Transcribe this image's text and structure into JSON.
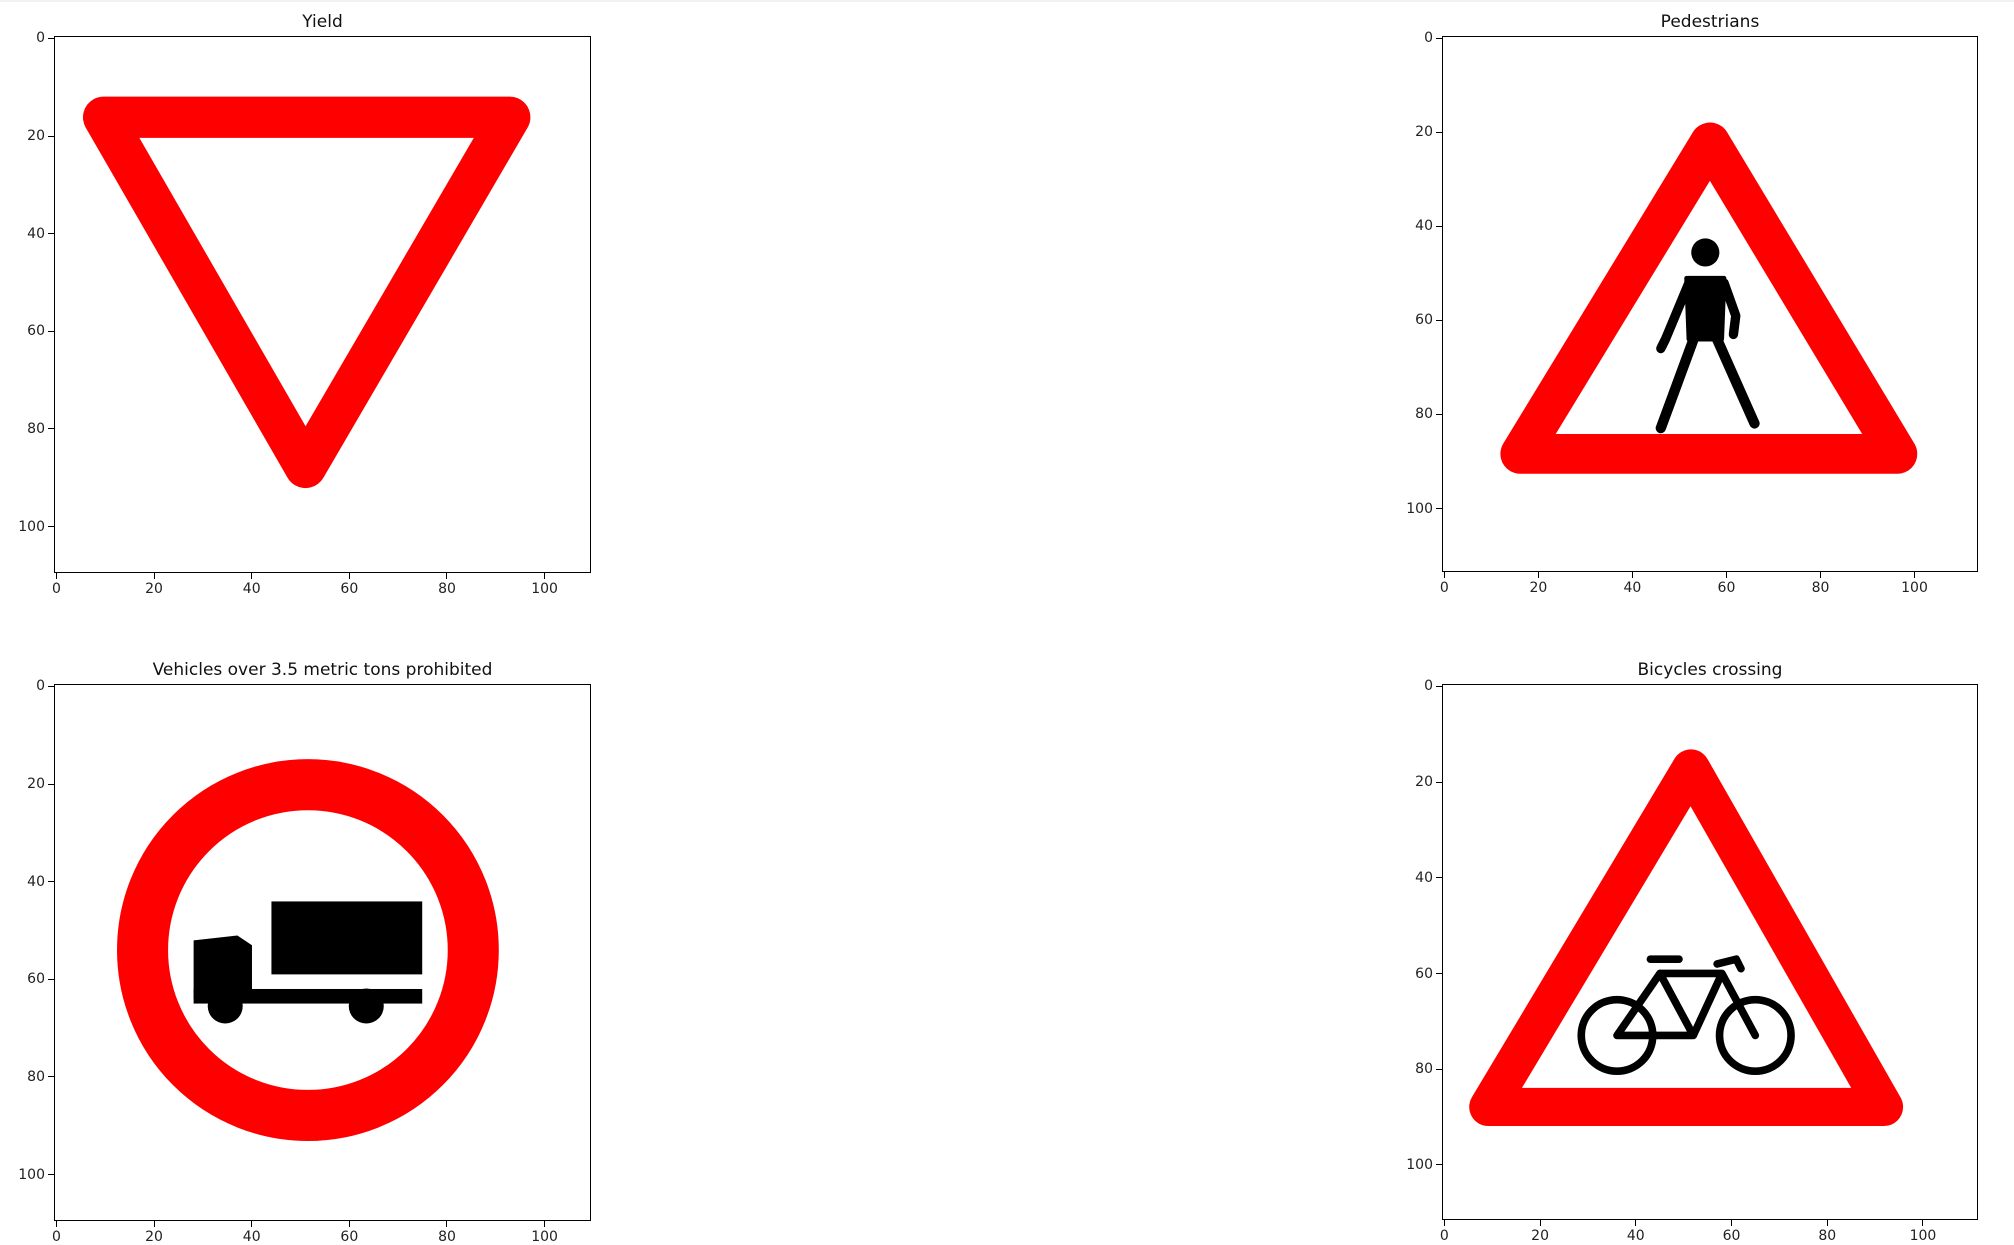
{
  "chart_data": [
    {
      "type": "image",
      "title": "Yield",
      "icon": "yield-sign-icon",
      "xlim": [
        0,
        110
      ],
      "ylim": [
        0,
        110
      ],
      "xticks": [
        0,
        20,
        40,
        60,
        80,
        100
      ],
      "yticks": [
        0,
        20,
        40,
        60,
        80,
        100
      ],
      "grid": false
    },
    {
      "type": "image",
      "title": "Pedestrians",
      "icon": "pedestrians-sign-icon",
      "xlim": [
        0,
        114
      ],
      "ylim": [
        0,
        114
      ],
      "xticks": [
        0,
        20,
        40,
        60,
        80,
        100
      ],
      "yticks": [
        0,
        20,
        40,
        60,
        80,
        100
      ],
      "grid": false
    },
    {
      "type": "image",
      "title": "Vehicles over 3.5 metric tons prohibited",
      "icon": "no-trucks-sign-icon",
      "xlim": [
        0,
        110
      ],
      "ylim": [
        0,
        110
      ],
      "xticks": [
        0,
        20,
        40,
        60,
        80,
        100
      ],
      "yticks": [
        0,
        20,
        40,
        60,
        80,
        100
      ],
      "grid": false
    },
    {
      "type": "image",
      "title": "Bicycles crossing",
      "icon": "bicycles-crossing-sign-icon",
      "xlim": [
        0,
        112
      ],
      "ylim": [
        0,
        112
      ],
      "xticks": [
        0,
        20,
        40,
        60,
        80,
        100
      ],
      "yticks": [
        0,
        20,
        40,
        60,
        80,
        100
      ],
      "grid": false
    }
  ],
  "colors": {
    "sign_red": "#ff0000",
    "symbol_black": "#000000",
    "background": "#ffffff"
  }
}
